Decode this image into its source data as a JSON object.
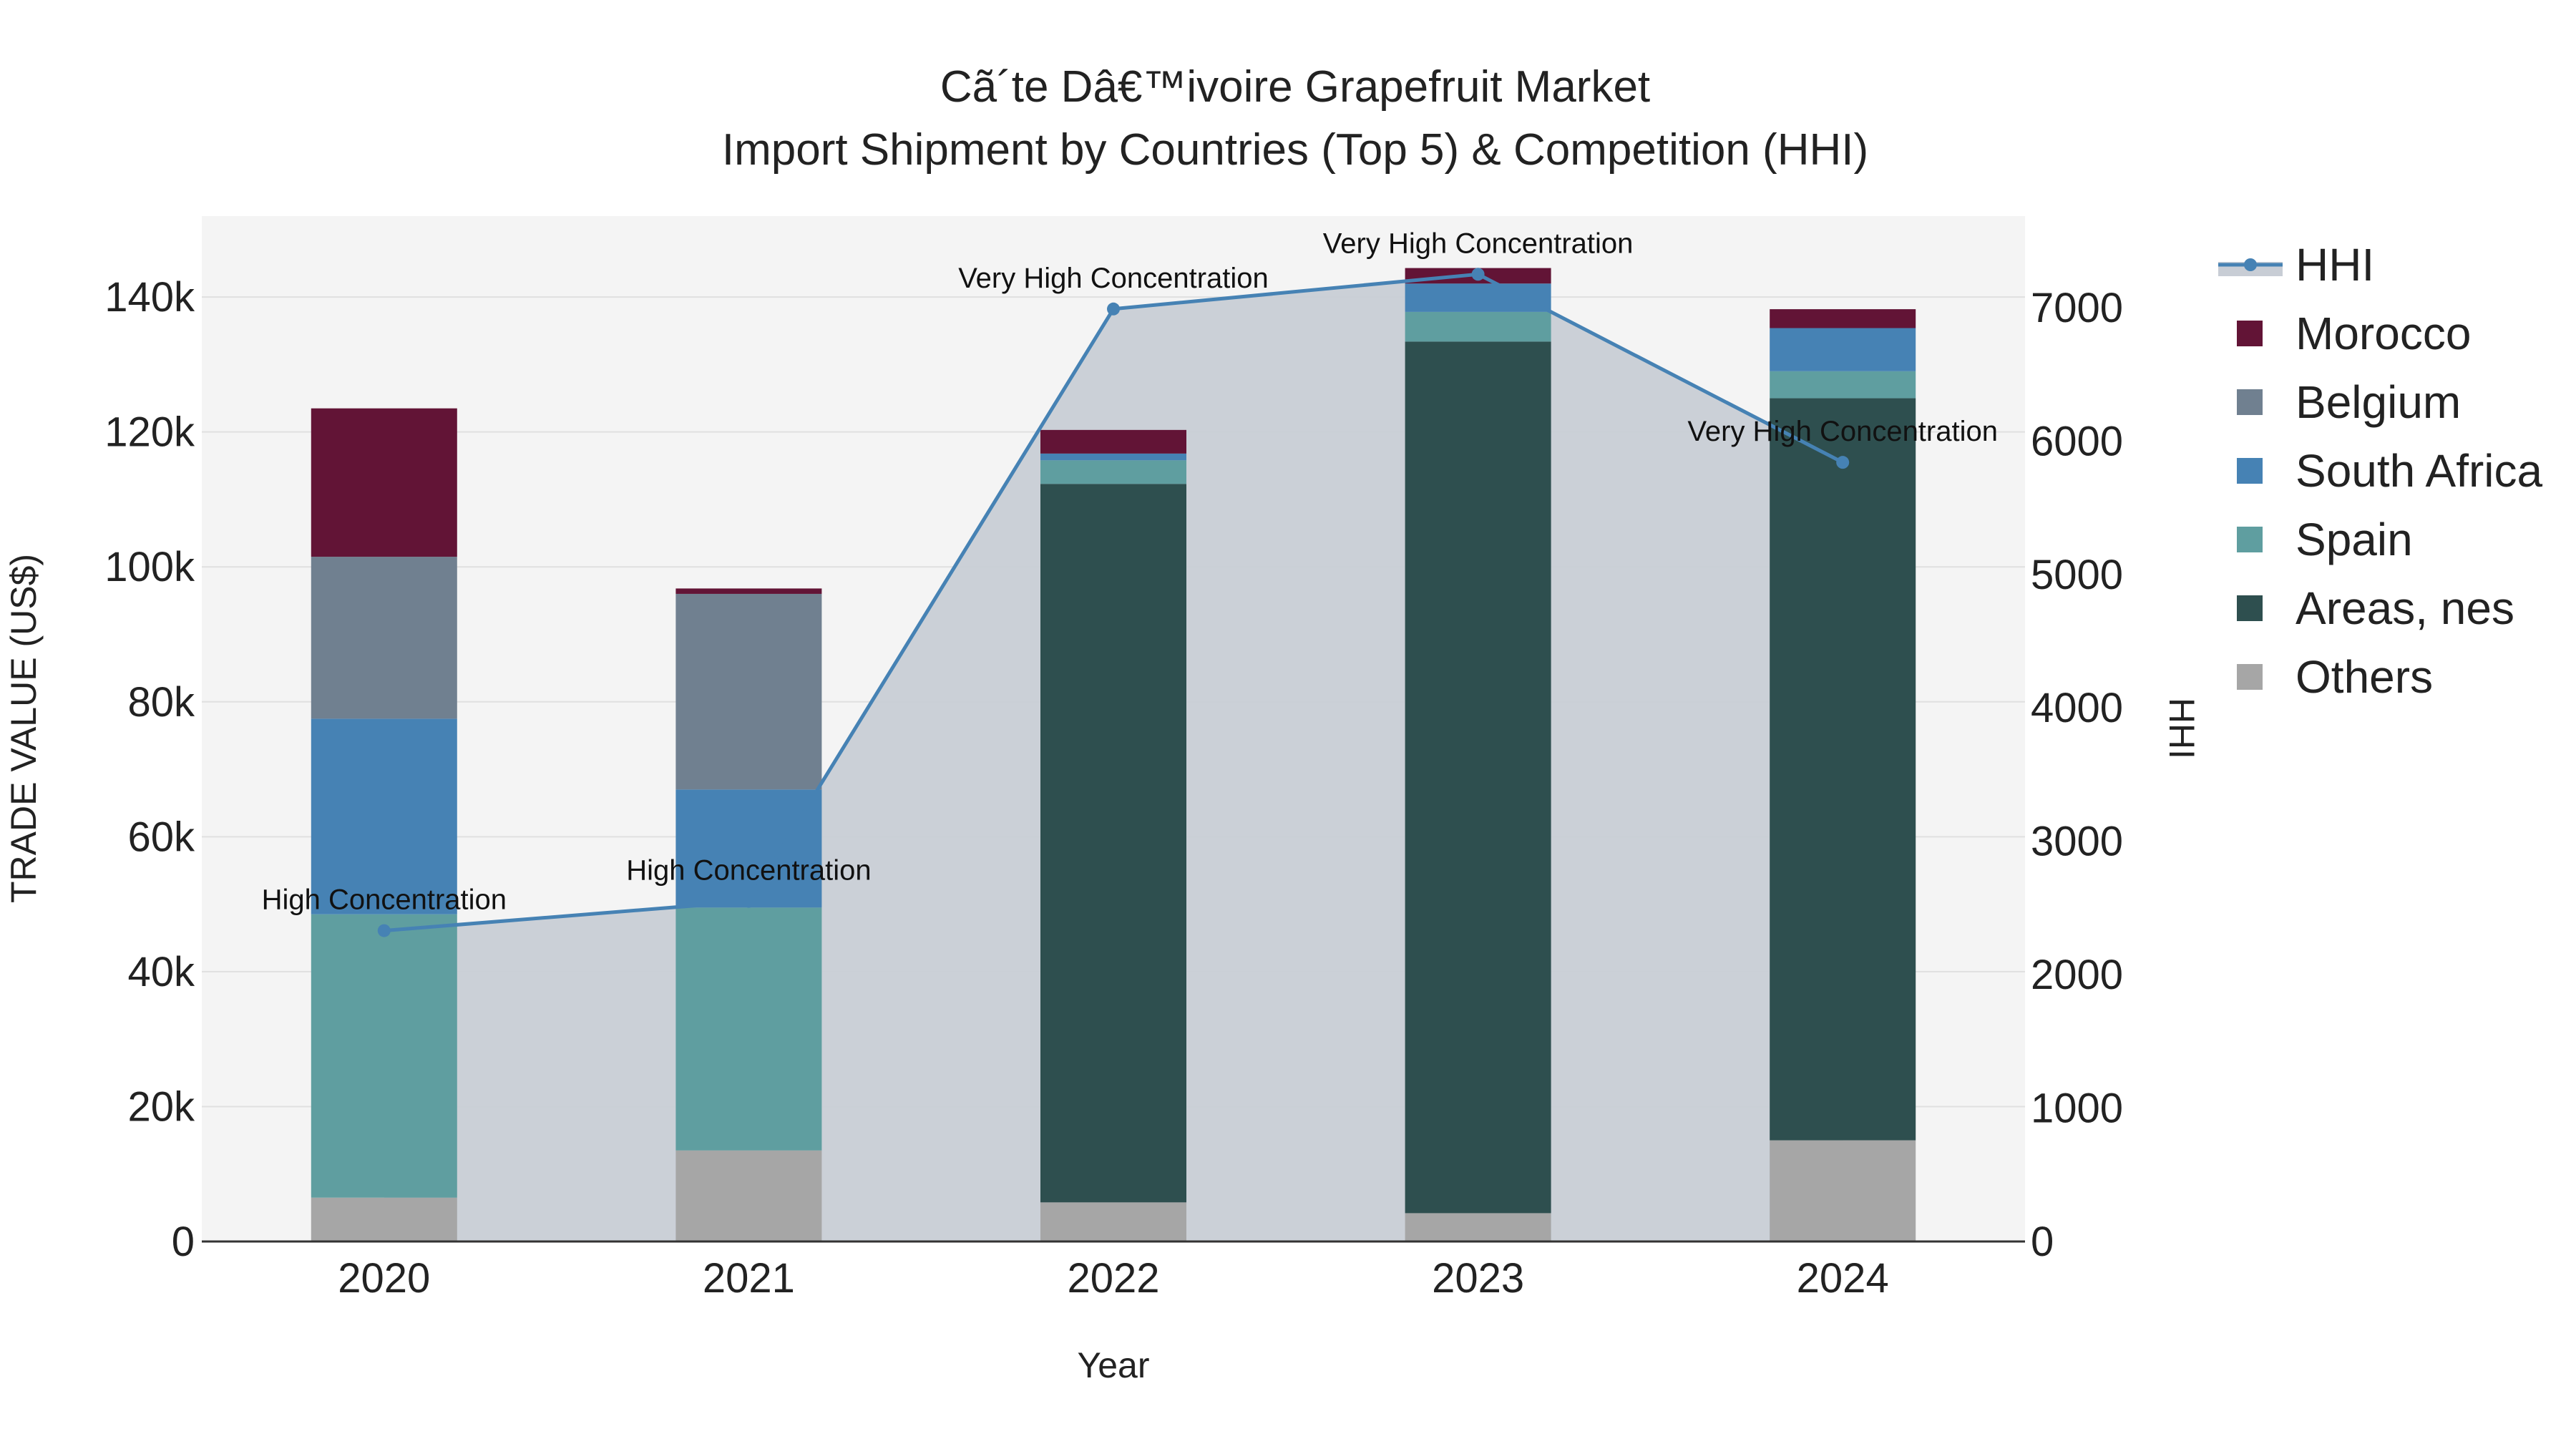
{
  "chart_data": {
    "type": "bar",
    "title": "Cã´te Dâ€™ivoire Grapefruit Market",
    "subtitle": "Import Shipment by Countries (Top 5) & Competition (HHI)",
    "xlabel": "Year",
    "ylabel": "TRADE VALUE (US$)",
    "y2label": "HHI",
    "categories": [
      "2020",
      "2021",
      "2022",
      "2023",
      "2024"
    ],
    "ylim": [
      0,
      152000
    ],
    "y2lim": [
      0,
      7686
    ],
    "y_ticks": [
      0,
      20000,
      40000,
      60000,
      80000,
      100000,
      120000,
      140000
    ],
    "y_tick_labels": [
      "0",
      "20k",
      "40k",
      "60k",
      "80k",
      "100k",
      "120k",
      "140k"
    ],
    "y2_ticks": [
      0,
      1000,
      2000,
      3000,
      4000,
      5000,
      6000,
      7000
    ],
    "y2_tick_labels": [
      "0",
      "1000",
      "2000",
      "3000",
      "4000",
      "5000",
      "6000",
      "7000"
    ],
    "series": [
      {
        "name": "Others",
        "color": "#a6a6a6",
        "values": [
          6500,
          13500,
          5800,
          4200,
          15000
        ]
      },
      {
        "name": "Areas, nes",
        "color": "#2e4f4f",
        "values": [
          0,
          0,
          106500,
          129200,
          110000
        ]
      },
      {
        "name": "Spain",
        "color": "#5f9ea0",
        "values": [
          42000,
          36000,
          3500,
          4400,
          4000
        ]
      },
      {
        "name": "South Africa",
        "color": "#4682b4",
        "values": [
          29000,
          17500,
          1000,
          4200,
          6400
        ]
      },
      {
        "name": "Belgium",
        "color": "#708090",
        "values": [
          24000,
          29000,
          0,
          0,
          0
        ]
      },
      {
        "name": "Morocco",
        "color": "#621436",
        "values": [
          22000,
          800,
          3500,
          2300,
          2800
        ]
      }
    ],
    "hhi": {
      "name": "HHI",
      "color": "#4682b4",
      "fill_color": "#c8cdd5",
      "values": [
        2330,
        2550,
        6990,
        7250,
        5840
      ],
      "labels": [
        "High Concentration",
        "High Concentration",
        "Very High Concentration",
        "Very High Concentration",
        "Very High Concentration"
      ]
    },
    "legend": [
      "HHI",
      "Morocco",
      "Belgium",
      "South Africa",
      "Spain",
      "Areas, nes",
      "Others"
    ],
    "legend_position": "right",
    "grid": true
  }
}
